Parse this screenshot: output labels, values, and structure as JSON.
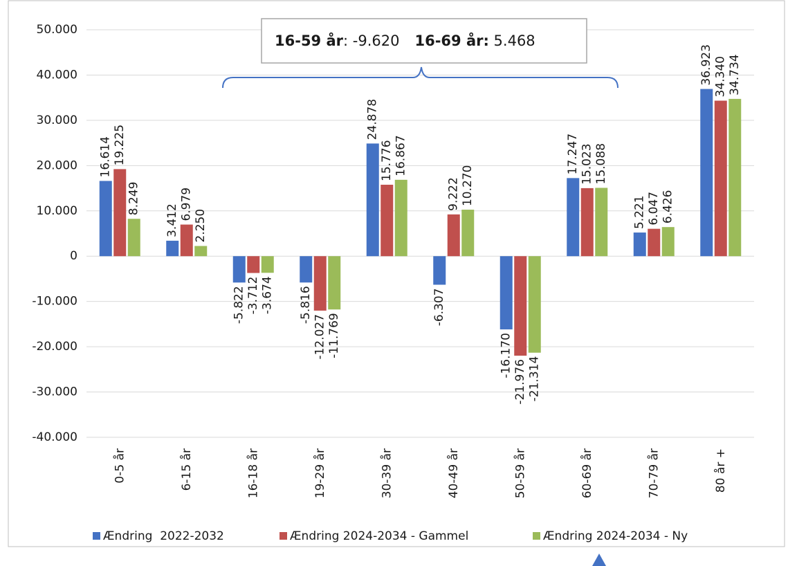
{
  "chart_data": {
    "type": "bar",
    "categories": [
      "0-5 år",
      "6-15 år",
      "16-18 år",
      "19-29 år",
      "30-39 år",
      "40-49 år",
      "50-59 år",
      "60-69 år",
      "70-79 år",
      "80 år +"
    ],
    "series": [
      {
        "name": "Ændring  2022-2032",
        "color": "#4472c4",
        "values": [
          16614,
          3412,
          -5822,
          -5816,
          24878,
          -6307,
          -16170,
          17247,
          5221,
          36923
        ],
        "value_labels": [
          "16.614",
          "3.412",
          "-5.822",
          "-5.816",
          "24.878",
          "-6.307",
          "-16.170",
          "17.247",
          "5.221",
          "36.923"
        ]
      },
      {
        "name": "Ændring 2024-2034 - Gammel",
        "color": "#c0504d",
        "values": [
          19225,
          6979,
          -3712,
          -12027,
          15776,
          9222,
          -21976,
          15023,
          6047,
          34340
        ],
        "value_labels": [
          "19.225",
          "6.979",
          "-3.712",
          "-12.027",
          "15.776",
          "9.222",
          "-21.976",
          "15.023",
          "6.047",
          "34.340"
        ]
      },
      {
        "name": "Ændring 2024-2034 - Ny",
        "color": "#9bbb59",
        "values": [
          8249,
          2250,
          -3674,
          -11769,
          16867,
          10270,
          -21314,
          15088,
          6426,
          34734
        ],
        "value_labels": [
          "8.249",
          "2.250",
          "-3.674",
          "-11.769",
          "16.867",
          "10.270",
          "-21.314",
          "15.088",
          "6.426",
          "34.734"
        ]
      }
    ],
    "ylim": [
      -40000,
      50000
    ],
    "yticks": [
      {
        "value": -40000,
        "label": "-40.000"
      },
      {
        "value": -30000,
        "label": "-30.000"
      },
      {
        "value": -20000,
        "label": "-20.000"
      },
      {
        "value": -10000,
        "label": "-10.000"
      },
      0,
      {
        "value": 10000,
        "label": "10.000"
      },
      {
        "value": 20000,
        "label": "20.000"
      },
      {
        "value": 30000,
        "label": "30.000"
      },
      {
        "value": 40000,
        "label": "40.000"
      },
      {
        "value": 50000,
        "label": "50.000"
      }
    ],
    "grid": true,
    "legend": "bottom",
    "annotation": {
      "parts": [
        "16-59 år",
        ": -9.620",
        "16-69 år:",
        " 5.468"
      ]
    }
  }
}
